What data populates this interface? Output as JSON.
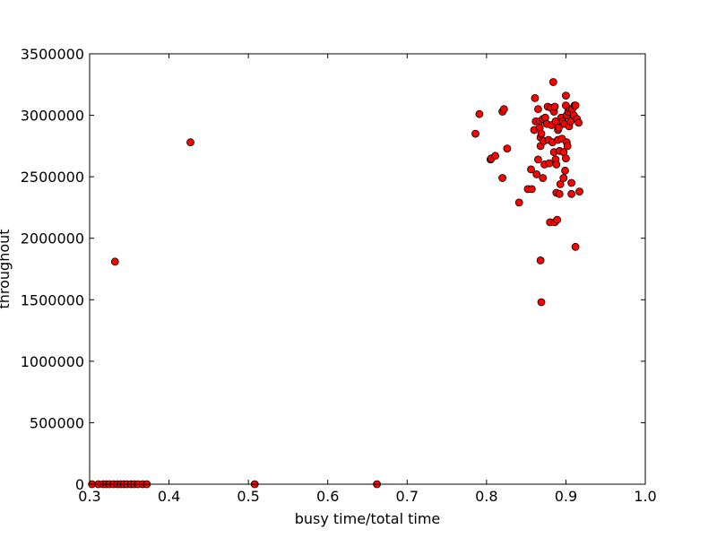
{
  "chart_data": {
    "type": "scatter",
    "xlabel": "busy time/total time",
    "ylabel": "throughout",
    "xlim": [
      0.3,
      1.0
    ],
    "ylim": [
      0,
      3500000
    ],
    "xticks": [
      0.3,
      0.4,
      0.5,
      0.6,
      0.7,
      0.8,
      0.9,
      1.0
    ],
    "xtick_labels": [
      "0.3",
      "0.4",
      "0.5",
      "0.6",
      "0.7",
      "0.8",
      "0.9",
      "1.0"
    ],
    "yticks": [
      0,
      500000,
      1000000,
      1500000,
      2000000,
      2500000,
      3000000,
      3500000
    ],
    "ytick_labels": [
      "0",
      "500000",
      "1000000",
      "1500000",
      "2000000",
      "2500000",
      "3000000",
      "3500000"
    ],
    "grid": false,
    "marker_color": "#ff0000",
    "marker_edge_color": "#000000",
    "series": [
      {
        "points": [
          [
            0.303,
            0
          ],
          [
            0.311,
            0
          ],
          [
            0.317,
            0
          ],
          [
            0.321,
            0
          ],
          [
            0.325,
            0
          ],
          [
            0.33,
            0
          ],
          [
            0.335,
            0
          ],
          [
            0.339,
            0
          ],
          [
            0.343,
            0
          ],
          [
            0.347,
            0
          ],
          [
            0.352,
            0
          ],
          [
            0.356,
            0
          ],
          [
            0.361,
            0
          ],
          [
            0.367,
            0
          ],
          [
            0.372,
            0
          ],
          [
            0.508,
            0
          ],
          [
            0.662,
            0
          ],
          [
            0.332,
            1810000
          ],
          [
            0.427,
            2780000
          ],
          [
            0.786,
            2850000
          ],
          [
            0.791,
            3010000
          ],
          [
            0.805,
            2640000
          ],
          [
            0.806,
            2650000
          ],
          [
            0.811,
            2670000
          ],
          [
            0.82,
            3030000
          ],
          [
            0.822,
            3050000
          ],
          [
            0.82,
            2490000
          ],
          [
            0.826,
            2730000
          ],
          [
            0.841,
            2290000
          ],
          [
            0.852,
            2400000
          ],
          [
            0.856,
            2560000
          ],
          [
            0.857,
            2400000
          ],
          [
            0.86,
            2880000
          ],
          [
            0.861,
            3140000
          ],
          [
            0.862,
            2950000
          ],
          [
            0.863,
            2520000
          ],
          [
            0.865,
            2640000
          ],
          [
            0.865,
            3050000
          ],
          [
            0.867,
            2950000
          ],
          [
            0.867,
            2900000
          ],
          [
            0.868,
            2820000
          ],
          [
            0.868,
            2750000
          ],
          [
            0.869,
            2850000
          ],
          [
            0.868,
            1820000
          ],
          [
            0.869,
            1480000
          ],
          [
            0.871,
            2490000
          ],
          [
            0.871,
            2970000
          ],
          [
            0.872,
            2790000
          ],
          [
            0.873,
            2600000
          ],
          [
            0.874,
            2980000
          ],
          [
            0.876,
            2930000
          ],
          [
            0.877,
            3070000
          ],
          [
            0.878,
            2800000
          ],
          [
            0.879,
            2610000
          ],
          [
            0.88,
            2130000
          ],
          [
            0.881,
            3060000
          ],
          [
            0.882,
            2920000
          ],
          [
            0.883,
            2780000
          ],
          [
            0.884,
            3270000
          ],
          [
            0.885,
            3030000
          ],
          [
            0.885,
            2700000
          ],
          [
            0.886,
            3070000
          ],
          [
            0.886,
            2130000
          ],
          [
            0.887,
            2950000
          ],
          [
            0.887,
            2640000
          ],
          [
            0.888,
            2600000
          ],
          [
            0.888,
            2370000
          ],
          [
            0.889,
            2150000
          ],
          [
            0.89,
            2880000
          ],
          [
            0.89,
            2800000
          ],
          [
            0.891,
            2900000
          ],
          [
            0.892,
            2360000
          ],
          [
            0.892,
            2710000
          ],
          [
            0.893,
            2440000
          ],
          [
            0.894,
            2980000
          ],
          [
            0.895,
            2810000
          ],
          [
            0.896,
            2950000
          ],
          [
            0.897,
            2490000
          ],
          [
            0.897,
            2700000
          ],
          [
            0.898,
            2930000
          ],
          [
            0.899,
            2550000
          ],
          [
            0.9,
            3160000
          ],
          [
            0.9,
            3080000
          ],
          [
            0.9,
            2650000
          ],
          [
            0.901,
            2780000
          ],
          [
            0.901,
            3000000
          ],
          [
            0.902,
            2750000
          ],
          [
            0.903,
            3030000
          ],
          [
            0.904,
            2910000
          ],
          [
            0.905,
            3050000
          ],
          [
            0.906,
            2950000
          ],
          [
            0.907,
            2360000
          ],
          [
            0.907,
            2450000
          ],
          [
            0.908,
            3050000
          ],
          [
            0.91,
            3000000
          ],
          [
            0.911,
            3080000
          ],
          [
            0.912,
            3080000
          ],
          [
            0.912,
            1930000
          ],
          [
            0.914,
            2970000
          ],
          [
            0.916,
            2940000
          ],
          [
            0.917,
            2380000
          ]
        ]
      }
    ]
  }
}
